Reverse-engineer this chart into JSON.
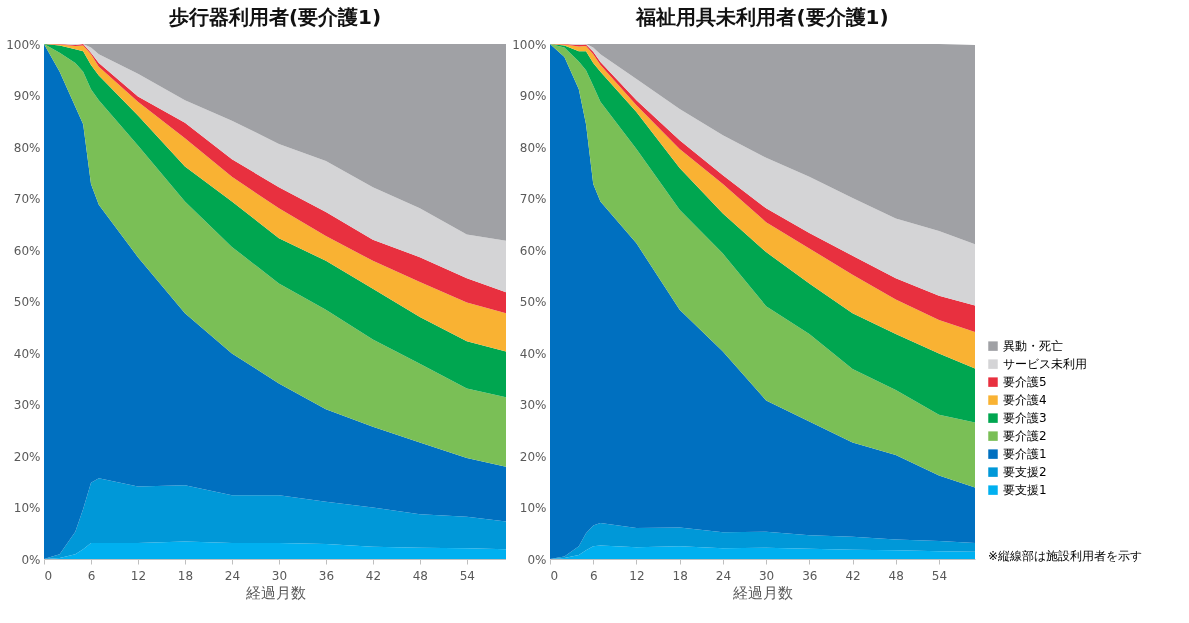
{
  "chart_data": [
    {
      "type": "area",
      "title": "歩行器利用者(要介護1)",
      "xlabel": "経過月数",
      "stacked": true,
      "legend": false,
      "grid": false,
      "xlim": [
        0,
        59
      ],
      "xticks": [
        0,
        6,
        12,
        18,
        24,
        30,
        36,
        42,
        48,
        54
      ],
      "ylim": [
        0,
        100
      ],
      "yticks": [
        {
          "value": 0,
          "label": "0%"
        },
        {
          "value": 10,
          "label": "10%"
        },
        {
          "value": 20,
          "label": "20%"
        },
        {
          "value": 30,
          "label": "30%"
        },
        {
          "value": 40,
          "label": "40%"
        },
        {
          "value": 50,
          "label": "50%"
        },
        {
          "value": 60,
          "label": "60%"
        },
        {
          "value": 70,
          "label": "70%"
        },
        {
          "value": 80,
          "label": "80%"
        },
        {
          "value": 90,
          "label": "90%"
        },
        {
          "value": 100,
          "label": "100%"
        }
      ],
      "x": [
        0,
        2,
        4,
        5,
        6,
        7,
        12,
        18,
        24,
        30,
        36,
        42,
        48,
        54,
        59
      ],
      "series": [
        {
          "color": "#00b0f0",
          "values": [
            0,
            0.2,
            0.9,
            1.9,
            3.1,
            3.1,
            3.1,
            3.4,
            3.1,
            3.1,
            2.9,
            2.4,
            2.2,
            2.1,
            1.9
          ]
        },
        {
          "color": "#0098d8",
          "values": [
            0,
            0.7,
            4.4,
            7.8,
            11.7,
            12.6,
            11,
            10.9,
            9.3,
            9.3,
            8.2,
            7.6,
            6.5,
            6.1,
            5.4
          ]
        },
        {
          "color": "#0070c0",
          "values": [
            100,
            93.7,
            82.5,
            74.7,
            58,
            53.1,
            44.5,
            33.4,
            27.5,
            21.7,
            18,
            15.7,
            13.9,
            11.4,
            10.6
          ]
        },
        {
          "color": "#7abf56",
          "values": [
            0,
            3.7,
            8.5,
            10.2,
            18.4,
            20.3,
            21.7,
            21.7,
            20.7,
            19.4,
            19.3,
            16.9,
            15.3,
            13.5,
            13.5
          ]
        },
        {
          "color": "#00a650",
          "values": [
            0,
            1.4,
            2.7,
            4,
            4.7,
            4.8,
            5.8,
            6.8,
            8.8,
            8.8,
            9.5,
            9.9,
            9.1,
            9.2,
            8.9
          ]
        },
        {
          "color": "#f9b233",
          "values": [
            0,
            0.2,
            0.6,
            1.1,
            2.1,
            1.7,
            2.7,
            5.5,
            4.8,
            5.8,
            4.8,
            5.4,
            6.8,
            7.5,
            7.4
          ]
        },
        {
          "color": "#e8303f",
          "values": [
            0,
            0.1,
            0.2,
            0.3,
            0.3,
            0.7,
            1,
            3,
            3.4,
            4.1,
            4.7,
            4.1,
            4.8,
            4.7,
            4.1
          ]
        },
        {
          "color": "#d4d4d6",
          "values": [
            0,
            0,
            0.2,
            0,
            1,
            1.7,
            4.4,
            4.4,
            7.5,
            8.4,
            9.9,
            10.2,
            9.5,
            8.5,
            10
          ]
        },
        {
          "color": "#a0a1a5",
          "values": [
            0,
            0,
            0,
            0,
            0.7,
            2,
            5.8,
            10.9,
            14.9,
            19.4,
            22.7,
            27.8,
            31.9,
            37,
            38.2
          ]
        }
      ]
    },
    {
      "type": "area",
      "title": "福祉用具未利用者(要介護1)",
      "xlabel": "経過月数",
      "stacked": true,
      "legend": "right",
      "grid": false,
      "annotations": [
        "※縦線部は施設利用者を示す"
      ],
      "xlim": [
        0,
        59
      ],
      "xticks": [
        0,
        6,
        12,
        18,
        24,
        30,
        36,
        42,
        48,
        54
      ],
      "ylim": [
        0,
        100
      ],
      "yticks": [
        {
          "value": 0,
          "label": "0%"
        },
        {
          "value": 10,
          "label": "10%"
        },
        {
          "value": 20,
          "label": "20%"
        },
        {
          "value": 30,
          "label": "30%"
        },
        {
          "value": 40,
          "label": "40%"
        },
        {
          "value": 50,
          "label": "50%"
        },
        {
          "value": 60,
          "label": "60%"
        },
        {
          "value": 70,
          "label": "70%"
        },
        {
          "value": 80,
          "label": "80%"
        },
        {
          "value": 90,
          "label": "90%"
        },
        {
          "value": 100,
          "label": "100%"
        }
      ],
      "x": [
        0,
        2,
        4,
        5,
        6,
        7,
        12,
        18,
        24,
        30,
        36,
        42,
        48,
        54,
        59
      ],
      "series": [
        {
          "name": "要支援1",
          "color": "#00b0f0",
          "values": [
            0,
            0.2,
            0.8,
            1.7,
            2.5,
            2.6,
            2.3,
            2.5,
            2.1,
            2.2,
            2,
            1.8,
            1.7,
            1.5,
            1.4
          ]
        },
        {
          "name": "要支援2",
          "color": "#0098d8",
          "values": [
            0,
            0.3,
            1.7,
            3.3,
            4,
            4.4,
            3.7,
            3.6,
            3.1,
            3.1,
            2.6,
            2.5,
            2.1,
            2,
            1.7
          ]
        },
        {
          "name": "要介護1",
          "color": "#0070c0",
          "values": [
            100,
            97,
            88.7,
            79.4,
            66.3,
            62.4,
            55.3,
            42.3,
            35.1,
            25.5,
            22.1,
            18.3,
            16.4,
            12.7,
            10.8
          ]
        },
        {
          "name": "要介護2",
          "color": "#7abf56",
          "values": [
            0,
            1.8,
            5.4,
            10.5,
            19.1,
            19.4,
            18.3,
            19.4,
            19,
            18.3,
            17,
            14.3,
            12.6,
            11.8,
            12.6
          ]
        },
        {
          "name": "要介護3",
          "color": "#00a650",
          "values": [
            0,
            0.4,
            2,
            3.7,
            4.4,
            5.8,
            7.2,
            8.1,
            7.8,
            10.5,
            9.8,
            10.8,
            10.9,
            11.9,
            10.5
          ]
        },
        {
          "name": "要介護4",
          "color": "#f9b233",
          "values": [
            0,
            0.2,
            0.9,
            1,
            1.7,
            1.3,
            1.3,
            3.7,
            5.7,
            5.8,
            6.8,
            7.5,
            6.7,
            6.5,
            7.1
          ]
        },
        {
          "name": "要介護5",
          "color": "#e8303f",
          "values": [
            0,
            0.1,
            0.3,
            0.3,
            0.5,
            0.6,
            1,
            1.7,
            1.7,
            2.7,
            3,
            3.7,
            4.1,
            4.7,
            5.1
          ]
        },
        {
          "name": "サービス未利用",
          "color": "#d4d4d6",
          "values": [
            0,
            0,
            0.2,
            0.1,
            0.8,
            1.5,
            4.1,
            6.1,
            7.8,
            9.8,
            10.9,
            11.2,
            11.6,
            12.6,
            11.9
          ]
        },
        {
          "name": "異動・死亡",
          "color": "#a0a1a5",
          "values": [
            0,
            0,
            0,
            0,
            0.7,
            2,
            6.8,
            12.6,
            17.7,
            22.1,
            25.8,
            29.9,
            33.9,
            36.3,
            38.7
          ]
        }
      ]
    }
  ]
}
